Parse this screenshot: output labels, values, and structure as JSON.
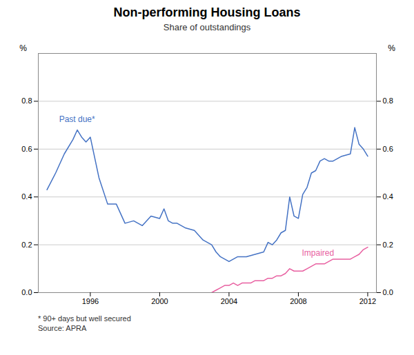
{
  "chart_data": {
    "type": "line",
    "title": "Non-performing Housing Loans",
    "subtitle": "Share of outstandings",
    "ylabel": "%",
    "y2label": "%",
    "footnotes": [
      "*   90+ days but well secured",
      "Source: APRA"
    ],
    "xlim": [
      1993.0,
      2012.5
    ],
    "xticks": [
      1996,
      2000,
      2004,
      2008,
      2012
    ],
    "ylim": [
      0.0,
      1.0
    ],
    "yticks": [
      {
        "value": 0.0,
        "label": "0.0"
      },
      0.2,
      0.4,
      0.6,
      0.8
    ],
    "y2lim": [
      0.0,
      1.0
    ],
    "y2ticks": [
      {
        "value": 0.0,
        "label": "0.0"
      },
      0.2,
      0.4,
      0.6,
      0.8
    ],
    "grid": true,
    "series": [
      {
        "name": "Past due*",
        "color": "#4472c4",
        "x": [
          1993.5,
          1994.0,
          1994.5,
          1995.0,
          1995.25,
          1995.5,
          1995.75,
          1996.0,
          1996.5,
          1997.0,
          1997.5,
          1998.0,
          1998.5,
          1999.0,
          1999.5,
          2000.0,
          2000.25,
          2000.5,
          2000.75,
          2001.0,
          2001.5,
          2002.0,
          2002.5,
          2003.0,
          2003.25,
          2003.5,
          2003.75,
          2004.0,
          2004.5,
          2005.0,
          2005.5,
          2006.0,
          2006.25,
          2006.5,
          2006.75,
          2007.0,
          2007.25,
          2007.5,
          2007.75,
          2008.0,
          2008.25,
          2008.5,
          2008.75,
          2009.0,
          2009.25,
          2009.5,
          2009.75,
          2010.0,
          2010.5,
          2011.0,
          2011.25,
          2011.5,
          2011.75,
          2012.0
        ],
        "values": [
          0.43,
          0.5,
          0.58,
          0.64,
          0.68,
          0.65,
          0.63,
          0.65,
          0.48,
          0.37,
          0.37,
          0.29,
          0.3,
          0.28,
          0.32,
          0.31,
          0.35,
          0.3,
          0.29,
          0.29,
          0.27,
          0.26,
          0.22,
          0.2,
          0.17,
          0.15,
          0.14,
          0.13,
          0.15,
          0.15,
          0.16,
          0.17,
          0.21,
          0.2,
          0.22,
          0.25,
          0.26,
          0.4,
          0.32,
          0.31,
          0.41,
          0.44,
          0.5,
          0.51,
          0.55,
          0.56,
          0.55,
          0.55,
          0.57,
          0.58,
          0.69,
          0.62,
          0.6,
          0.57
        ]
      },
      {
        "name": "Impaired",
        "color": "#e85fa0",
        "x": [
          2003.0,
          2003.25,
          2003.5,
          2003.75,
          2004.0,
          2004.25,
          2004.5,
          2004.75,
          2005.0,
          2005.25,
          2005.5,
          2005.75,
          2006.0,
          2006.25,
          2006.5,
          2006.75,
          2007.0,
          2007.25,
          2007.5,
          2007.75,
          2008.0,
          2008.25,
          2008.5,
          2008.75,
          2009.0,
          2009.25,
          2009.5,
          2009.75,
          2010.0,
          2010.5,
          2011.0,
          2011.25,
          2011.5,
          2011.75,
          2012.0
        ],
        "values": [
          0.0,
          0.01,
          0.02,
          0.03,
          0.03,
          0.04,
          0.03,
          0.04,
          0.04,
          0.04,
          0.05,
          0.05,
          0.05,
          0.06,
          0.06,
          0.07,
          0.07,
          0.08,
          0.1,
          0.09,
          0.09,
          0.09,
          0.1,
          0.11,
          0.12,
          0.12,
          0.12,
          0.13,
          0.14,
          0.14,
          0.14,
          0.15,
          0.16,
          0.18,
          0.19
        ]
      }
    ],
    "annotations": [
      {
        "text": "Past due*",
        "x": 1994.2,
        "y": 0.725,
        "color": "#4472c4"
      },
      {
        "text": "Impaired",
        "x": 2008.2,
        "y": 0.165,
        "color": "#e85fa0"
      }
    ]
  }
}
